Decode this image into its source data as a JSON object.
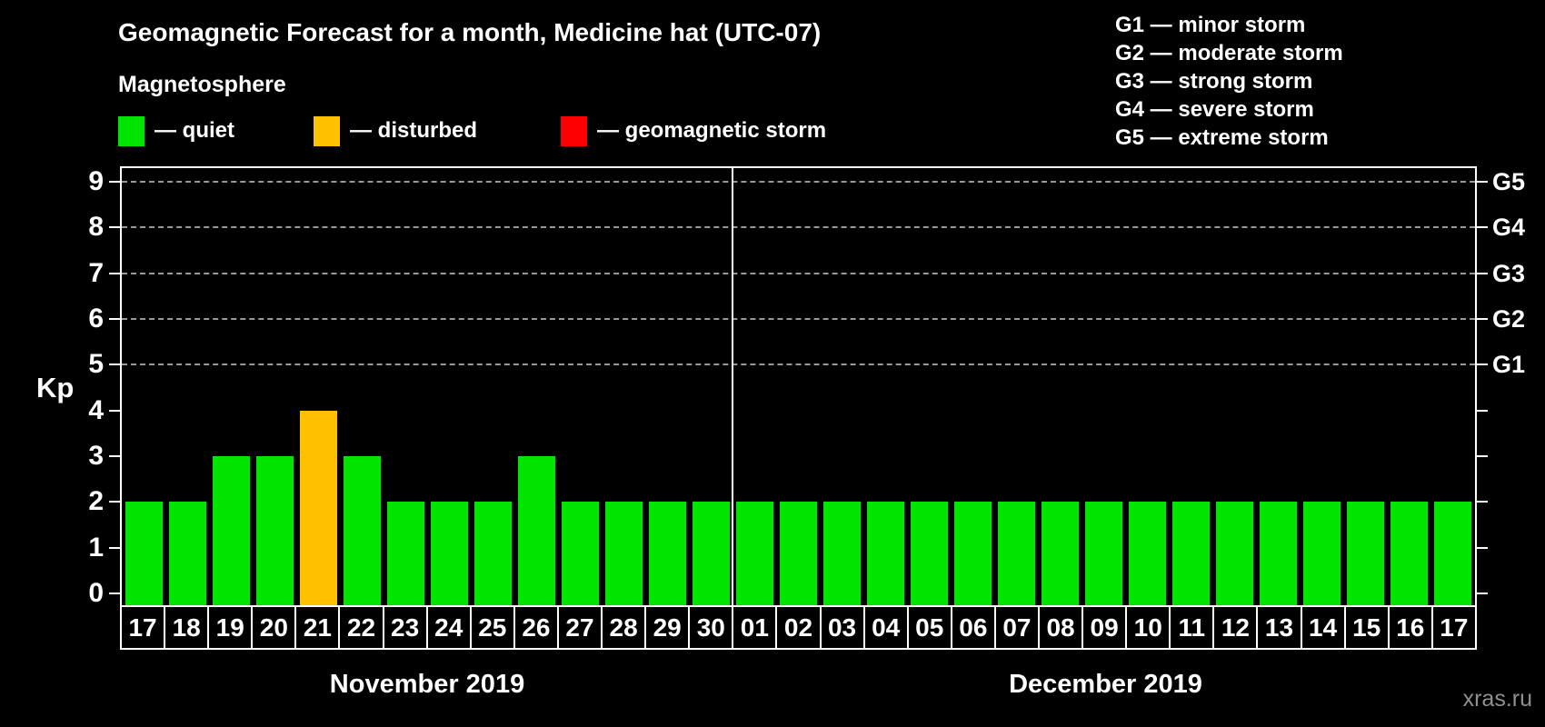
{
  "title": "Geomagnetic Forecast for a month, Medicine hat (UTC-07)",
  "subtitle": "Magnetosphere",
  "activity_legend": [
    {
      "name": "quiet",
      "label": "— quiet",
      "color": "#00e400"
    },
    {
      "name": "disturbed",
      "label": "— disturbed",
      "color": "#ffc000"
    },
    {
      "name": "storm",
      "label": "— geomagnetic storm",
      "color": "#ff0000"
    }
  ],
  "g_scale_legend": [
    "G1 — minor storm",
    "G2 — moderate storm",
    "G3 — strong storm",
    "G4 — severe storm",
    "G5 — extreme storm"
  ],
  "watermark": "xras.ru",
  "chart_data": {
    "type": "bar",
    "title": "Geomagnetic Forecast for a month, Medicine hat (UTC-07)",
    "xlabel": "",
    "ylabel": "Kp",
    "ylim": [
      0,
      9
    ],
    "y_ticks": [
      0,
      1,
      2,
      3,
      4,
      5,
      6,
      7,
      8,
      9
    ],
    "gridlines_at_kp": [
      5,
      6,
      7,
      8,
      9
    ],
    "grid": "dashed-horizontal-G-levels-only",
    "legend_position": "top",
    "right_axis_labels": [
      {
        "text": "G1",
        "kp": 5
      },
      {
        "text": "G2",
        "kp": 6
      },
      {
        "text": "G3",
        "kp": 7
      },
      {
        "text": "G4",
        "kp": 8
      },
      {
        "text": "G5",
        "kp": 9
      }
    ],
    "status_colors": {
      "quiet": "#00e400",
      "disturbed": "#ffc000",
      "storm": "#ff0000"
    },
    "months": [
      {
        "label": "November 2019",
        "days": [
          "17",
          "18",
          "19",
          "20",
          "21",
          "22",
          "23",
          "24",
          "25",
          "26",
          "27",
          "28",
          "29",
          "30"
        ],
        "values": [
          2,
          2,
          3,
          3,
          4,
          3,
          2,
          2,
          2,
          3,
          2,
          2,
          2,
          2
        ],
        "status": [
          "quiet",
          "quiet",
          "quiet",
          "quiet",
          "disturbed",
          "quiet",
          "quiet",
          "quiet",
          "quiet",
          "quiet",
          "quiet",
          "quiet",
          "quiet",
          "quiet"
        ]
      },
      {
        "label": "December 2019",
        "days": [
          "01",
          "02",
          "03",
          "04",
          "05",
          "06",
          "07",
          "08",
          "09",
          "10",
          "11",
          "12",
          "13",
          "14",
          "15",
          "16",
          "17"
        ],
        "values": [
          2,
          2,
          2,
          2,
          2,
          2,
          2,
          2,
          2,
          2,
          2,
          2,
          2,
          2,
          2,
          2,
          2
        ],
        "status": [
          "quiet",
          "quiet",
          "quiet",
          "quiet",
          "quiet",
          "quiet",
          "quiet",
          "quiet",
          "quiet",
          "quiet",
          "quiet",
          "quiet",
          "quiet",
          "quiet",
          "quiet",
          "quiet",
          "quiet"
        ]
      }
    ]
  }
}
